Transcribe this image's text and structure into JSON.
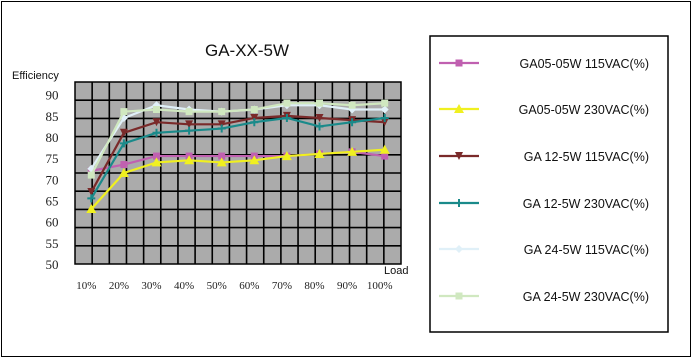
{
  "chart_data": {
    "type": "line",
    "title": "GA-XX-5W",
    "xlabel": "Load",
    "ylabel": "Efficiency",
    "categories": [
      "10%",
      "20%",
      "30%",
      "40%",
      "50%",
      "60%",
      "70%",
      "80%",
      "90%",
      "100%"
    ],
    "yticks": [
      50,
      55,
      60,
      65,
      70,
      75,
      80,
      85,
      90
    ],
    "ylim": [
      50,
      93
    ],
    "grid": true,
    "legend_position": "right",
    "series": [
      {
        "name": "GA05-05W 115VAC(%)",
        "color": "#c060b0",
        "marker": "square",
        "values": [
          72,
          73.5,
          75.5,
          75.5,
          75.5,
          75.5,
          75.5,
          76,
          76.5,
          75.5
        ]
      },
      {
        "name": "GA05-05W 230VAC(%)",
        "color": "#f0f020",
        "marker": "triangle",
        "values": [
          63,
          71.5,
          74,
          74.5,
          74,
          74.5,
          75.5,
          76,
          76.5,
          77
        ]
      },
      {
        "name": "GA 12-5W 115VAC(%)",
        "color": "#7a2a2a",
        "marker": "arrow",
        "values": [
          67,
          81,
          83.5,
          83,
          83,
          84.5,
          85,
          84.5,
          84,
          83.5
        ]
      },
      {
        "name": "GA 12-5W 230VAC(%)",
        "color": "#1a8a8a",
        "marker": "plus",
        "values": [
          65.5,
          78.5,
          81,
          81.5,
          82,
          83.5,
          84.5,
          82.5,
          83.5,
          84.5
        ]
      },
      {
        "name": "GA 24-5W 115VAC(%)",
        "color": "#e0f0f8",
        "marker": "diamond",
        "values": [
          72.5,
          84.5,
          87.5,
          86.5,
          86,
          86.5,
          87.5,
          87.5,
          86.5,
          86.5
        ]
      },
      {
        "name": "GA 24-5W 230VAC(%)",
        "color": "#d0e8c0",
        "marker": "square",
        "values": [
          71,
          86,
          86.5,
          86,
          86,
          86.5,
          88,
          88,
          87.5,
          88
        ]
      }
    ]
  }
}
